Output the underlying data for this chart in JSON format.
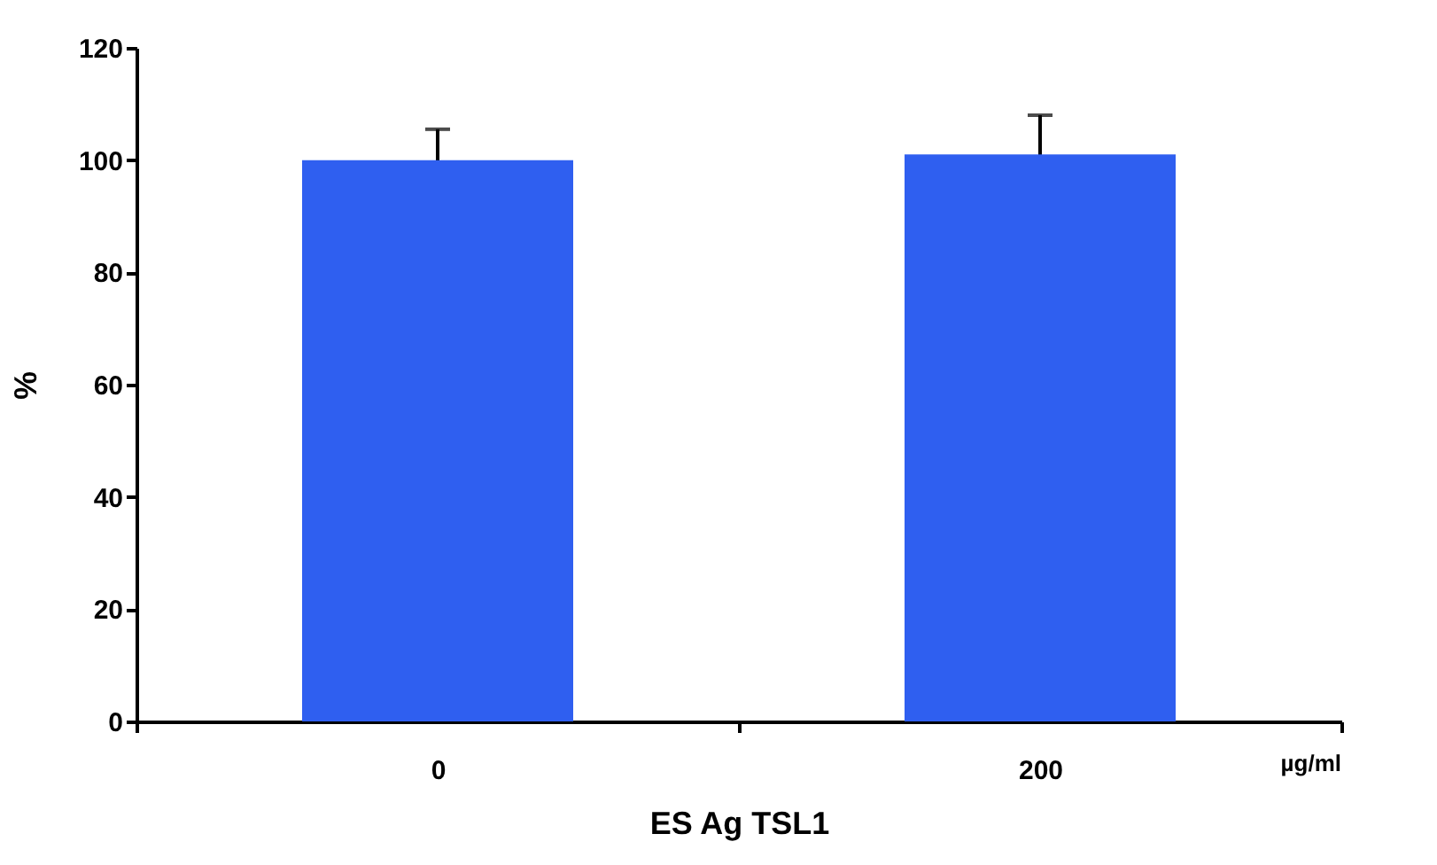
{
  "chart_data": {
    "type": "bar",
    "xlabel": "ES Ag TSL1",
    "ylabel": "%",
    "categories": [
      "0",
      "200"
    ],
    "values": [
      100,
      101
    ],
    "errors": [
      5.5,
      7
    ],
    "color": "#2f5ff0",
    "ylim": [
      0,
      120
    ],
    "yticks": [
      0,
      20,
      40,
      60,
      80,
      100,
      120
    ],
    "grid": false,
    "annotations": [
      "µg/ml"
    ]
  }
}
